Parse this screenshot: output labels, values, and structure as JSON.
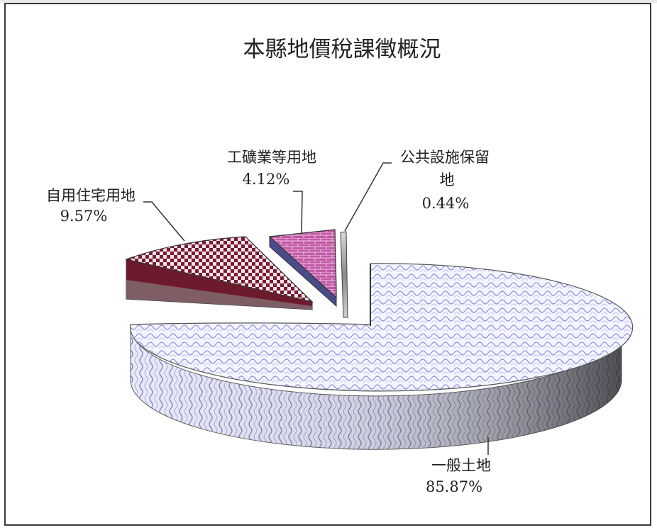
{
  "chart_data": {
    "type": "pie",
    "title": "本縣地價稅課徵概況",
    "slices": [
      {
        "name": "一般土地",
        "percent_label": "85.87%",
        "value": 85.87
      },
      {
        "name": "自用住宅用地",
        "percent_label": "9.57%",
        "value": 9.57
      },
      {
        "name": "工礦業等用地",
        "percent_label": "4.12%",
        "value": 4.12
      },
      {
        "name": "公共設施保留地",
        "name_line1": "公共設施保留",
        "name_line2": "地",
        "percent_label": "0.44%",
        "value": 0.44
      }
    ],
    "legend": "none",
    "style": "3d-exploded"
  }
}
